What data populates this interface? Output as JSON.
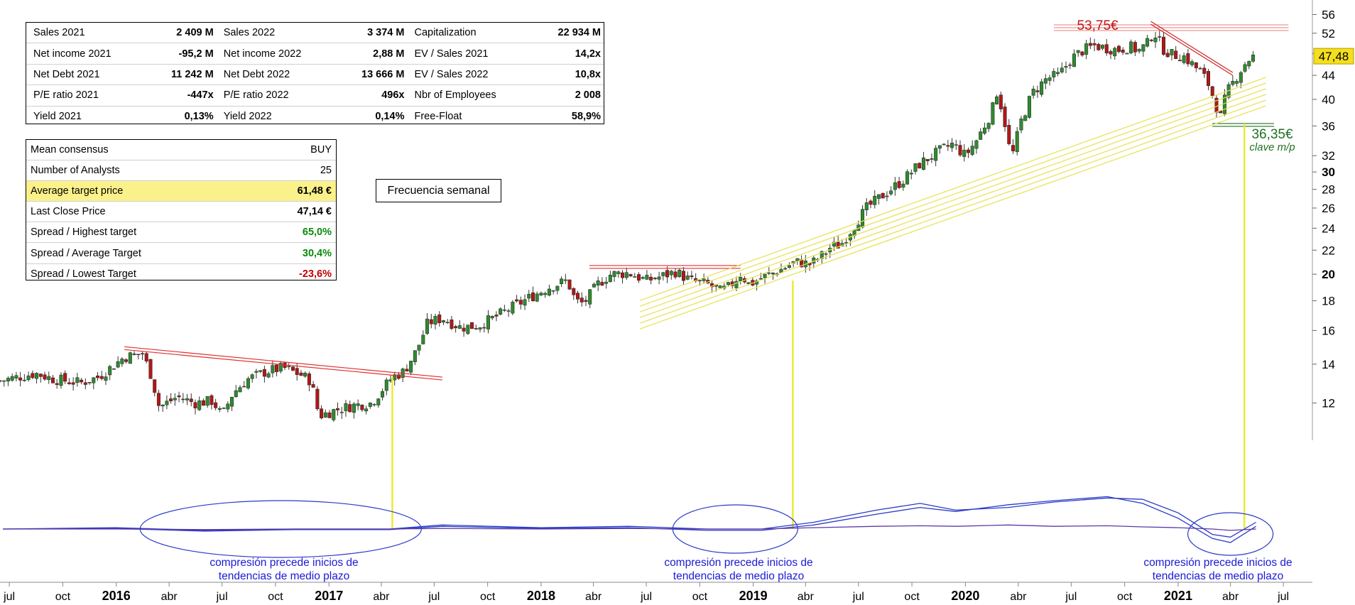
{
  "fundamentals": [
    [
      {
        "label": "Sales 2021",
        "value": "2 409 M"
      },
      {
        "label": "Sales 2022",
        "value": "3 374 M"
      },
      {
        "label": "Capitalization",
        "value": "22 934 M"
      }
    ],
    [
      {
        "label": "Net income 2021",
        "value": "-95,2 M"
      },
      {
        "label": "Net income 2022",
        "value": "2,88 M"
      },
      {
        "label": "EV / Sales 2021",
        "value": "14,2x"
      }
    ],
    [
      {
        "label": "Net Debt 2021",
        "value": "11 242 M"
      },
      {
        "label": "Net Debt 2022",
        "value": "13 666 M"
      },
      {
        "label": "EV / Sales 2022",
        "value": "10,8x"
      }
    ],
    [
      {
        "label": "P/E ratio 2021",
        "value": "-447x"
      },
      {
        "label": "P/E ratio 2022",
        "value": "496x"
      },
      {
        "label": "Nbr of Employees",
        "value": "2 008"
      }
    ],
    [
      {
        "label": "Yield 2021",
        "value": "0,13%"
      },
      {
        "label": "Yield 2022",
        "value": "0,14%"
      },
      {
        "label": "Free-Float",
        "value": "58,9%"
      }
    ]
  ],
  "consensus": {
    "rows": [
      {
        "label": "Mean consensus",
        "value": "BUY"
      },
      {
        "label": "Number of Analysts",
        "value": "25"
      },
      {
        "label": "Average target price",
        "value": "61,48 €"
      },
      {
        "label": "Last Close Price",
        "value": "47,14 €"
      },
      {
        "label": "Spread / Highest target",
        "value": "65,0%"
      },
      {
        "label": "Spread / Average Target",
        "value": "30,4%"
      },
      {
        "label": "Spread / Lowest Target",
        "value": "-23,6%"
      }
    ],
    "highlight_color": "#fbf18b",
    "positive_color": "#0a8a0a",
    "negative_color": "#c00000"
  },
  "annotations": {
    "frequency": "Frecuencia semanal",
    "peak_label": "53,75€",
    "support_label": "36,35€",
    "support_sublabel": "clave m/p",
    "compression_note_1": "compresión precede inicios de tendencias de medio plazo",
    "compression_note_2": "compresión precede inicios de tendencias de medio plazo",
    "compression_note_3": "compresión precede inicios de tendencias de medio plazo"
  },
  "chart_data": {
    "type": "candlestick",
    "frequency": "weekly",
    "y_scale": "log",
    "ylim": [
      10.5,
      58
    ],
    "y_ticks": [
      12,
      14,
      16,
      18,
      20,
      22,
      24,
      26,
      28,
      30,
      32,
      36,
      40,
      44,
      48,
      52,
      56
    ],
    "y_ticks_bold": [
      20,
      30
    ],
    "last_price_label": "47,48",
    "last_price": 47.48,
    "x_start": "2015-06-15",
    "x_end": "2021-08-20",
    "x_ticks": [
      {
        "label": "jul",
        "date": "2015-07-01"
      },
      {
        "label": "oct",
        "date": "2015-10-01"
      },
      {
        "label": "2016",
        "date": "2016-01-01",
        "bold": true
      },
      {
        "label": "abr",
        "date": "2016-04-01"
      },
      {
        "label": "jul",
        "date": "2016-07-01"
      },
      {
        "label": "oct",
        "date": "2016-10-01"
      },
      {
        "label": "2017",
        "date": "2017-01-01",
        "bold": true
      },
      {
        "label": "abr",
        "date": "2017-04-01"
      },
      {
        "label": "jul",
        "date": "2017-07-01"
      },
      {
        "label": "oct",
        "date": "2017-10-01"
      },
      {
        "label": "2018",
        "date": "2018-01-01",
        "bold": true
      },
      {
        "label": "abr",
        "date": "2018-04-01"
      },
      {
        "label": "jul",
        "date": "2018-07-01"
      },
      {
        "label": "oct",
        "date": "2018-10-01"
      },
      {
        "label": "2019",
        "date": "2019-01-01",
        "bold": true
      },
      {
        "label": "abr",
        "date": "2019-04-01"
      },
      {
        "label": "jul",
        "date": "2019-07-01"
      },
      {
        "label": "oct",
        "date": "2019-10-01"
      },
      {
        "label": "2020",
        "date": "2020-01-01",
        "bold": true
      },
      {
        "label": "abr",
        "date": "2020-04-01"
      },
      {
        "label": "jul",
        "date": "2020-07-01"
      },
      {
        "label": "oct",
        "date": "2020-10-01"
      },
      {
        "label": "2021",
        "date": "2021-01-01",
        "bold": true
      },
      {
        "label": "abr",
        "date": "2021-04-01"
      },
      {
        "label": "jul",
        "date": "2021-07-01"
      }
    ],
    "close_path": [
      [
        "2015-06-15",
        13.1
      ],
      [
        "2015-08-15",
        13.5
      ],
      [
        "2015-09-15",
        13.2
      ],
      [
        "2015-11-01",
        13.0
      ],
      [
        "2015-12-01",
        13.3
      ],
      [
        "2016-01-15",
        14.4
      ],
      [
        "2016-02-15",
        14.6
      ],
      [
        "2016-03-01",
        13.4
      ],
      [
        "2016-03-15",
        11.8
      ],
      [
        "2016-04-15",
        12.3
      ],
      [
        "2016-05-15",
        12.0
      ],
      [
        "2016-06-15",
        12.1
      ],
      [
        "2016-07-01",
        11.4
      ],
      [
        "2016-07-20",
        12.5
      ],
      [
        "2016-08-15",
        13.2
      ],
      [
        "2016-09-15",
        13.6
      ],
      [
        "2016-10-15",
        13.8
      ],
      [
        "2016-11-15",
        13.4
      ],
      [
        "2016-12-01",
        13.1
      ],
      [
        "2016-12-15",
        11.4
      ],
      [
        "2017-01-15",
        11.7
      ],
      [
        "2017-02-15",
        11.9
      ],
      [
        "2017-03-15",
        12.0
      ],
      [
        "2017-04-01",
        12.6
      ],
      [
        "2017-04-20",
        13.3
      ],
      [
        "2017-05-10",
        13.6
      ],
      [
        "2017-06-01",
        14.8
      ],
      [
        "2017-06-20",
        16.5
      ],
      [
        "2017-07-15",
        16.8
      ],
      [
        "2017-08-15",
        16.2
      ],
      [
        "2017-09-15",
        16.3
      ],
      [
        "2017-10-15",
        16.9
      ],
      [
        "2017-11-15",
        17.6
      ],
      [
        "2017-12-15",
        18.3
      ],
      [
        "2018-01-15",
        19.0
      ],
      [
        "2018-02-15",
        19.5
      ],
      [
        "2018-03-01",
        18.0
      ],
      [
        "2018-03-15",
        17.8
      ],
      [
        "2018-04-10",
        19.3
      ],
      [
        "2018-05-01",
        20.0
      ],
      [
        "2018-06-01",
        20.1
      ],
      [
        "2018-07-01",
        19.5
      ],
      [
        "2018-08-01",
        19.9
      ],
      [
        "2018-08-20",
        20.2
      ],
      [
        "2018-09-15",
        19.5
      ],
      [
        "2018-10-15",
        19.2
      ],
      [
        "2018-11-05",
        18.7
      ],
      [
        "2018-11-20",
        19.0
      ],
      [
        "2018-12-10",
        20.0
      ],
      [
        "2018-12-25",
        19.2
      ],
      [
        "2019-01-20",
        19.8
      ],
      [
        "2019-02-15",
        20.3
      ],
      [
        "2019-03-15",
        21.0
      ],
      [
        "2019-04-10",
        20.8
      ],
      [
        "2019-05-01",
        21.6
      ],
      [
        "2019-05-15",
        22.3
      ],
      [
        "2019-06-01",
        22.5
      ],
      [
        "2019-06-20",
        24.0
      ],
      [
        "2019-07-15",
        26.0
      ],
      [
        "2019-08-15",
        27.5
      ],
      [
        "2019-09-15",
        29.0
      ],
      [
        "2019-10-15",
        31.0
      ],
      [
        "2019-11-15",
        32.5
      ],
      [
        "2019-12-10",
        33.5
      ],
      [
        "2020-01-01",
        32.0
      ],
      [
        "2020-01-20",
        34.0
      ],
      [
        "2020-02-15",
        38.0
      ],
      [
        "2020-02-25",
        41.5
      ],
      [
        "2020-03-10",
        36.0
      ],
      [
        "2020-03-20",
        31.5
      ],
      [
        "2020-04-05",
        36.5
      ],
      [
        "2020-04-25",
        41.0
      ],
      [
        "2020-05-20",
        43.5
      ],
      [
        "2020-06-10",
        44.0
      ],
      [
        "2020-07-01",
        47.0
      ],
      [
        "2020-07-20",
        48.5
      ],
      [
        "2020-08-10",
        49.5
      ],
      [
        "2020-09-01",
        49.0
      ],
      [
        "2020-09-20",
        48.7
      ],
      [
        "2020-10-10",
        49.3
      ],
      [
        "2020-10-25",
        48.5
      ],
      [
        "2020-11-10",
        50.0
      ],
      [
        "2020-11-20",
        52.5
      ],
      [
        "2020-12-05",
        49.0
      ],
      [
        "2020-12-20",
        47.8
      ],
      [
        "2021-01-10",
        47.5
      ],
      [
        "2021-01-25",
        46.0
      ],
      [
        "2021-02-10",
        44.5
      ],
      [
        "2021-02-25",
        42.0
      ],
      [
        "2021-03-05",
        39.5
      ],
      [
        "2021-03-15",
        37.3
      ],
      [
        "2021-03-25",
        41.0
      ],
      [
        "2021-04-10",
        43.5
      ],
      [
        "2021-04-25",
        46.0
      ],
      [
        "2021-05-05",
        47.1
      ],
      [
        "2021-05-12",
        47.48
      ]
    ],
    "indicator_series": [
      {
        "points": [
          [
            "2015-06-20",
            0.0
          ],
          [
            "2016-01-01",
            0.05
          ],
          [
            "2016-06-01",
            -0.05
          ],
          [
            "2016-11-01",
            0.0
          ],
          [
            "2017-04-15",
            0.0
          ],
          [
            "2017-07-15",
            0.15
          ],
          [
            "2018-01-01",
            0.05
          ],
          [
            "2018-06-01",
            0.1
          ],
          [
            "2018-10-15",
            0.0
          ],
          [
            "2019-01-15",
            0.0
          ],
          [
            "2019-04-15",
            0.25
          ],
          [
            "2019-08-01",
            0.7
          ],
          [
            "2019-10-15",
            0.95
          ],
          [
            "2019-12-15",
            0.7
          ],
          [
            "2020-03-15",
            0.8
          ],
          [
            "2020-06-01",
            1.0
          ],
          [
            "2020-09-01",
            1.15
          ],
          [
            "2020-11-01",
            1.1
          ],
          [
            "2021-01-01",
            0.6
          ],
          [
            "2021-03-01",
            -0.2
          ],
          [
            "2021-04-01",
            -0.3
          ],
          [
            "2021-05-15",
            0.25
          ]
        ]
      },
      {
        "points": [
          [
            "2015-06-20",
            0.0
          ],
          [
            "2016-01-01",
            0.02
          ],
          [
            "2016-06-01",
            -0.08
          ],
          [
            "2016-11-01",
            -0.02
          ],
          [
            "2017-04-15",
            -0.02
          ],
          [
            "2017-07-15",
            0.1
          ],
          [
            "2018-01-01",
            0.02
          ],
          [
            "2018-06-01",
            0.05
          ],
          [
            "2018-10-15",
            -0.05
          ],
          [
            "2019-01-15",
            -0.05
          ],
          [
            "2019-04-15",
            0.15
          ],
          [
            "2019-08-01",
            0.55
          ],
          [
            "2019-10-15",
            0.8
          ],
          [
            "2019-12-15",
            0.65
          ],
          [
            "2020-03-15",
            0.9
          ],
          [
            "2020-06-01",
            1.05
          ],
          [
            "2020-09-01",
            1.2
          ],
          [
            "2020-11-01",
            0.95
          ],
          [
            "2021-01-01",
            0.4
          ],
          [
            "2021-03-01",
            -0.35
          ],
          [
            "2021-04-01",
            -0.5
          ],
          [
            "2021-05-15",
            0.1
          ]
        ]
      },
      {
        "points": [
          [
            "2015-06-20",
            0.0
          ],
          [
            "2016-01-01",
            0.0
          ],
          [
            "2016-06-01",
            -0.02
          ],
          [
            "2016-11-01",
            0.0
          ],
          [
            "2017-04-15",
            0.0
          ],
          [
            "2017-07-15",
            0.02
          ],
          [
            "2018-01-01",
            0.0
          ],
          [
            "2018-06-01",
            0.02
          ],
          [
            "2018-10-15",
            0.0
          ],
          [
            "2019-01-15",
            0.0
          ],
          [
            "2019-04-15",
            0.05
          ],
          [
            "2019-08-01",
            0.1
          ],
          [
            "2019-10-15",
            0.12
          ],
          [
            "2019-12-15",
            0.1
          ],
          [
            "2020-03-15",
            0.15
          ],
          [
            "2020-06-01",
            0.1
          ],
          [
            "2020-09-01",
            0.12
          ],
          [
            "2020-11-01",
            0.08
          ],
          [
            "2021-01-01",
            0.05
          ],
          [
            "2021-03-01",
            0.0
          ],
          [
            "2021-04-01",
            -0.05
          ],
          [
            "2021-05-15",
            0.0
          ]
        ]
      }
    ]
  }
}
